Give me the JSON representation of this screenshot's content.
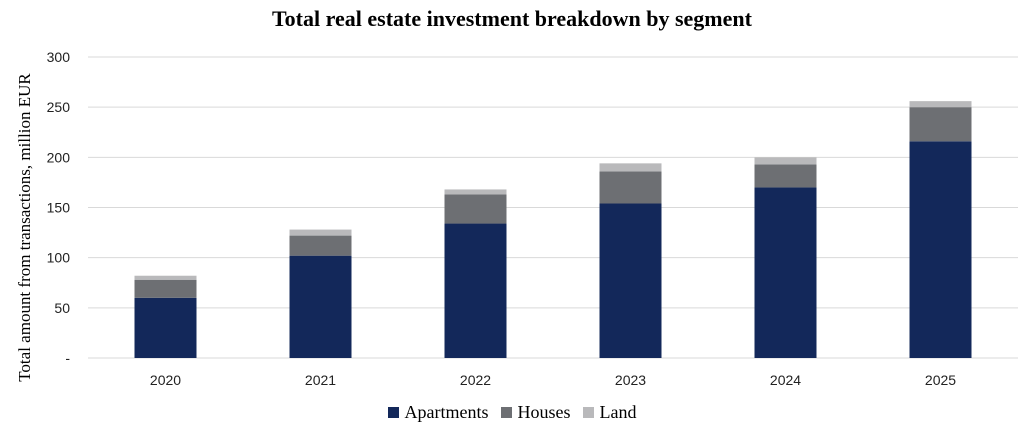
{
  "chart_data": {
    "type": "bar",
    "stacked": true,
    "title": "Total real estate investment breakdown by segment",
    "ylabel": "Total amount from transactions, million EUR",
    "xlabel": "",
    "categories": [
      "2020",
      "2021",
      "2022",
      "2023",
      "2024",
      "2025"
    ],
    "series": [
      {
        "name": "Apartments",
        "color": "#13285a",
        "values": [
          60,
          102,
          134,
          154,
          170,
          216
        ]
      },
      {
        "name": "Houses",
        "color": "#6d6f73",
        "values": [
          18,
          20,
          29,
          32,
          23,
          34
        ]
      },
      {
        "name": "Land",
        "color": "#b9b9bb",
        "values": [
          4,
          6,
          5,
          8,
          7,
          6
        ]
      }
    ],
    "ylim": [
      0,
      300
    ],
    "yticks": [
      0,
      50,
      100,
      150,
      200,
      250,
      300
    ],
    "ytick_labels": [
      "-",
      "50",
      "100",
      "150",
      "200",
      "250",
      "300"
    ],
    "grid": "horizontal",
    "legend_position": "bottom"
  }
}
